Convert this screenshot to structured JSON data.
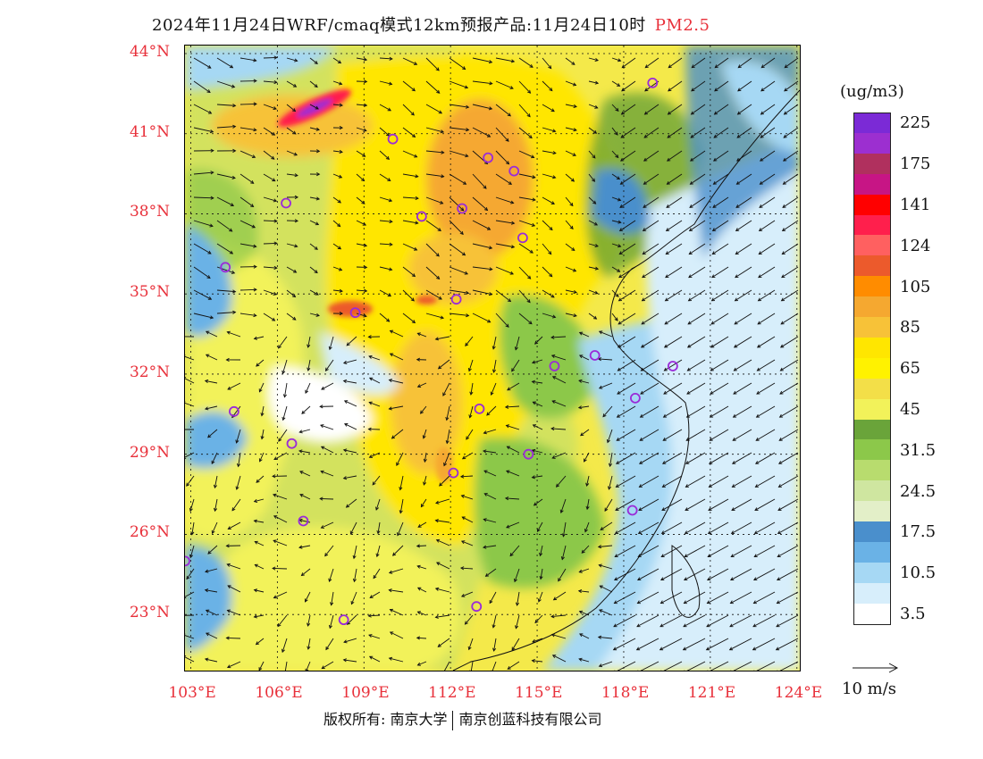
{
  "title": {
    "main": "2024年11月24日WRF/cmaq模式12km预报产品:11月24日10时",
    "pollutant": "PM2.5"
  },
  "map": {
    "lon_range": [
      102.8,
      124.1
    ],
    "lat_range": [
      20.9,
      44.3
    ],
    "lat_ticks": [
      {
        "value": 44,
        "label": "44°N"
      },
      {
        "value": 41,
        "label": "41°N"
      },
      {
        "value": 38,
        "label": "38°N"
      },
      {
        "value": 35,
        "label": "35°N"
      },
      {
        "value": 32,
        "label": "32°N"
      },
      {
        "value": 29,
        "label": "29°N"
      },
      {
        "value": 26,
        "label": "26°N"
      },
      {
        "value": 23,
        "label": "23°N"
      }
    ],
    "lon_ticks": [
      {
        "value": 103,
        "label": "103°E"
      },
      {
        "value": 106,
        "label": "106°E"
      },
      {
        "value": 109,
        "label": "109°E"
      },
      {
        "value": 112,
        "label": "112°E"
      },
      {
        "value": 115,
        "label": "115°E"
      },
      {
        "value": 118,
        "label": "118°E"
      },
      {
        "value": 121,
        "label": "121°E"
      },
      {
        "value": 124,
        "label": "124°E"
      }
    ],
    "cities": [
      [
        119.0,
        42.9
      ],
      [
        110.0,
        40.8
      ],
      [
        113.3,
        40.1
      ],
      [
        114.2,
        39.6
      ],
      [
        106.3,
        38.4
      ],
      [
        111.0,
        37.9
      ],
      [
        112.4,
        38.2
      ],
      [
        114.5,
        37.1
      ],
      [
        104.2,
        36.0
      ],
      [
        112.2,
        34.8
      ],
      [
        108.7,
        34.3
      ],
      [
        115.6,
        32.3
      ],
      [
        117.0,
        32.7
      ],
      [
        119.7,
        32.3
      ],
      [
        118.4,
        31.1
      ],
      [
        104.5,
        30.6
      ],
      [
        106.5,
        29.4
      ],
      [
        113.0,
        30.7
      ],
      [
        114.7,
        29.0
      ],
      [
        112.1,
        28.3
      ],
      [
        106.9,
        26.5
      ],
      [
        118.3,
        26.9
      ],
      [
        102.8,
        25.0
      ],
      [
        108.3,
        22.8
      ],
      [
        112.9,
        23.3
      ]
    ]
  },
  "legend": {
    "unit": "(ug/m3)",
    "colors": [
      "#7b2ad6",
      "#9c2fd0",
      "#b0305e",
      "#c71585",
      "#ff0000",
      "#ff1f4c",
      "#ff6060",
      "#ec5a2c",
      "#ff8c00",
      "#f5a830",
      "#f7c238",
      "#ffe600",
      "#fff200",
      "#f3df48",
      "#f2f25a",
      "#6aa43a",
      "#8cc84a",
      "#b8dc6e",
      "#cfe6a0",
      "#e3efc8",
      "#4a8fcc",
      "#6ab2e6",
      "#a6d8f4",
      "#d7eefb",
      "#ffffff"
    ],
    "labels": [
      "225",
      "175",
      "141",
      "124",
      "105",
      "85",
      "65",
      "45",
      "31.5",
      "24.5",
      "17.5",
      "10.5",
      "3.5"
    ]
  },
  "wind_scale": {
    "label": "10 m/s"
  },
  "footer": {
    "copyright": "版权所有: 南京大学",
    "company": "南京创蓝科技有限公司"
  }
}
